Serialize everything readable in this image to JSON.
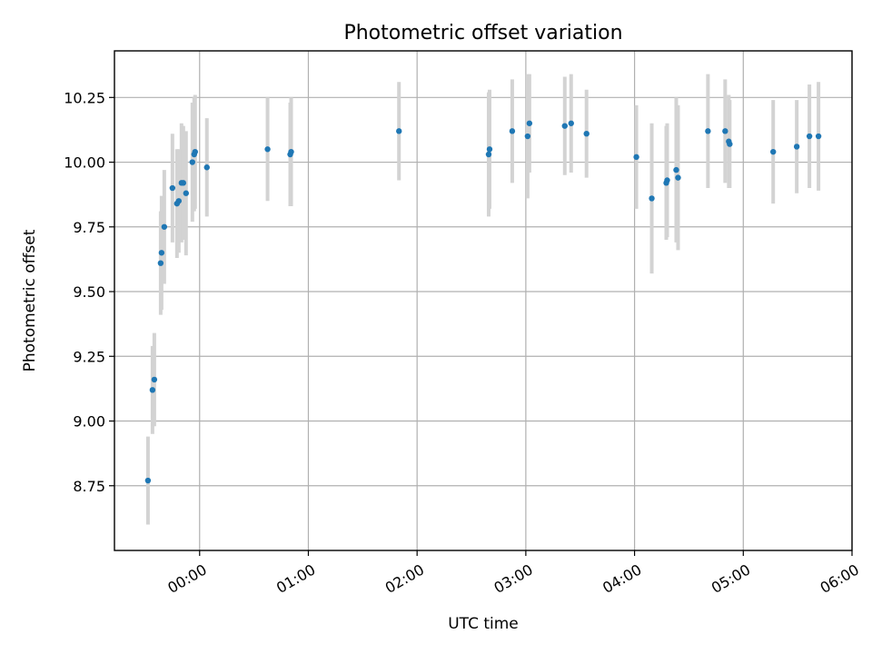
{
  "chart_data": {
    "type": "scatter",
    "title": "Photometric offset variation",
    "xlabel": "UTC time",
    "ylabel": "Photometric offset",
    "x_tick_labels": [
      "00:00",
      "01:00",
      "02:00",
      "03:00",
      "04:00",
      "05:00",
      "06:00"
    ],
    "y_tick_labels": [
      "8.75",
      "9.00",
      "9.25",
      "9.50",
      "9.75",
      "10.00",
      "10.25"
    ],
    "x_unit": "minutes after 00:00 UTC",
    "xlim": [
      -47,
      360
    ],
    "ylim": [
      8.5,
      10.43
    ],
    "grid": true,
    "point_color": "#1f77b4",
    "errorbar_color": "#d3d3d3",
    "series": [
      {
        "points": [
          {
            "x": -28.5,
            "y": 8.77,
            "err": 0.17
          },
          {
            "x": -26.0,
            "y": 9.12,
            "err": 0.17
          },
          {
            "x": -25.0,
            "y": 9.16,
            "err": 0.18
          },
          {
            "x": -21.5,
            "y": 9.61,
            "err": 0.2
          },
          {
            "x": -21.0,
            "y": 9.65,
            "err": 0.22
          },
          {
            "x": -19.5,
            "y": 9.75,
            "err": 0.22
          },
          {
            "x": -15.0,
            "y": 9.9,
            "err": 0.21
          },
          {
            "x": -12.5,
            "y": 9.84,
            "err": 0.21
          },
          {
            "x": -11.5,
            "y": 9.85,
            "err": 0.2
          },
          {
            "x": -10.0,
            "y": 9.92,
            "err": 0.23
          },
          {
            "x": -9.0,
            "y": 9.92,
            "err": 0.22
          },
          {
            "x": -7.5,
            "y": 9.88,
            "err": 0.24
          },
          {
            "x": -4.0,
            "y": 10.0,
            "err": 0.23
          },
          {
            "x": -3.0,
            "y": 10.03,
            "err": 0.22
          },
          {
            "x": -2.5,
            "y": 10.04,
            "err": 0.22
          },
          {
            "x": 4.0,
            "y": 9.98,
            "err": 0.19
          },
          {
            "x": 37.5,
            "y": 10.05,
            "err": 0.2
          },
          {
            "x": 50.0,
            "y": 10.03,
            "err": 0.2
          },
          {
            "x": 50.5,
            "y": 10.04,
            "err": 0.21
          },
          {
            "x": 110.0,
            "y": 10.12,
            "err": 0.19
          },
          {
            "x": 159.5,
            "y": 10.03,
            "err": 0.24
          },
          {
            "x": 160.0,
            "y": 10.05,
            "err": 0.23
          },
          {
            "x": 172.5,
            "y": 10.12,
            "err": 0.2
          },
          {
            "x": 181.0,
            "y": 10.1,
            "err": 0.24
          },
          {
            "x": 182.0,
            "y": 10.15,
            "err": 0.19
          },
          {
            "x": 201.5,
            "y": 10.14,
            "err": 0.19
          },
          {
            "x": 205.0,
            "y": 10.15,
            "err": 0.19
          },
          {
            "x": 213.5,
            "y": 10.11,
            "err": 0.17
          },
          {
            "x": 241.0,
            "y": 10.02,
            "err": 0.2
          },
          {
            "x": 249.5,
            "y": 9.86,
            "err": 0.29
          },
          {
            "x": 257.5,
            "y": 9.92,
            "err": 0.22
          },
          {
            "x": 258.0,
            "y": 9.93,
            "err": 0.22
          },
          {
            "x": 263.0,
            "y": 9.97,
            "err": 0.28
          },
          {
            "x": 264.0,
            "y": 9.94,
            "err": 0.28
          },
          {
            "x": 280.5,
            "y": 10.12,
            "err": 0.22
          },
          {
            "x": 290.0,
            "y": 10.12,
            "err": 0.2
          },
          {
            "x": 292.0,
            "y": 10.08,
            "err": 0.18
          },
          {
            "x": 292.5,
            "y": 10.07,
            "err": 0.17
          },
          {
            "x": 316.5,
            "y": 10.04,
            "err": 0.2
          },
          {
            "x": 329.5,
            "y": 10.06,
            "err": 0.18
          },
          {
            "x": 336.5,
            "y": 10.1,
            "err": 0.2
          },
          {
            "x": 341.5,
            "y": 10.1,
            "err": 0.21
          }
        ]
      }
    ]
  }
}
